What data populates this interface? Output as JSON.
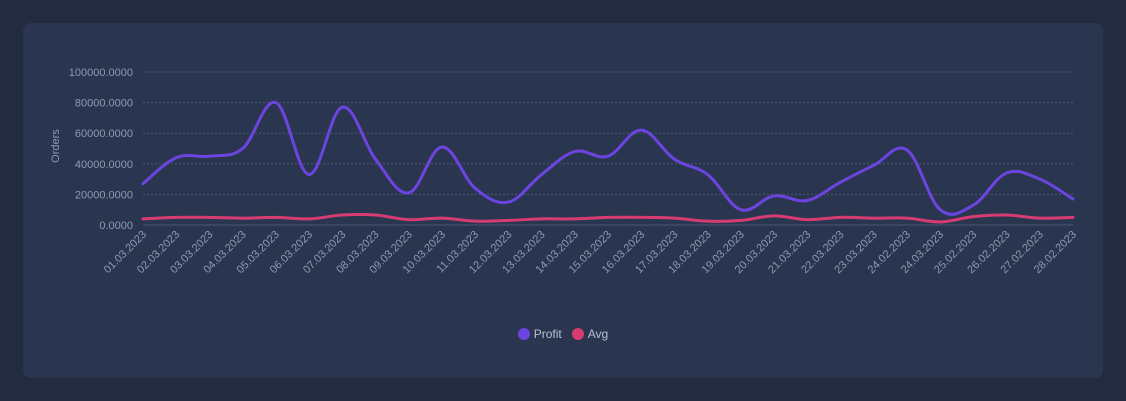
{
  "chart_data": {
    "type": "line",
    "title": "",
    "xlabel": "",
    "ylabel": "Orders",
    "ylim": [
      0,
      100000
    ],
    "yticks": [
      "0.0000",
      "20000.0000",
      "40000.0000",
      "60000.0000",
      "80000.0000",
      "100000.0000"
    ],
    "grid": true,
    "legend_position": "bottom",
    "categories": [
      "01.03.2023",
      "02.03.2023",
      "03.03.2023",
      "04.03.2023",
      "05.03.2023",
      "06.03.2023",
      "07.03.2023",
      "08.03.2023",
      "09.03.2023",
      "10.03.2023",
      "11.03.2023",
      "12.03.2023",
      "13.03.2023",
      "14.03.2023",
      "15.03.2023",
      "16.03.2023",
      "17.03.2023",
      "18.03.2023",
      "19.03.2023",
      "20.03.2023",
      "21.03.2023",
      "22.03.2023",
      "23.03.2023",
      "24.02.2023",
      "24.03.2023",
      "25.02.2023",
      "26.02.2023",
      "27.02.2023",
      "28.02.2023"
    ],
    "series": [
      {
        "name": "Profit",
        "color": "#6c45e0",
        "values": [
          27000,
          44000,
          45000,
          50000,
          80000,
          33000,
          77000,
          43000,
          21000,
          51000,
          24000,
          15000,
          33000,
          48000,
          45000,
          62000,
          43000,
          33000,
          10000,
          19000,
          16000,
          28000,
          39000,
          49000,
          10000,
          13000,
          34000,
          30000,
          17000
        ]
      },
      {
        "name": "Avg",
        "color": "#d63c72",
        "values": [
          4000,
          5000,
          5000,
          4500,
          5000,
          4000,
          6500,
          6500,
          3500,
          4500,
          2500,
          3000,
          4000,
          4000,
          5000,
          5000,
          4500,
          2500,
          3000,
          6000,
          3500,
          5000,
          4500,
          4500,
          2000,
          5500,
          6500,
          4500,
          5000
        ]
      }
    ]
  }
}
